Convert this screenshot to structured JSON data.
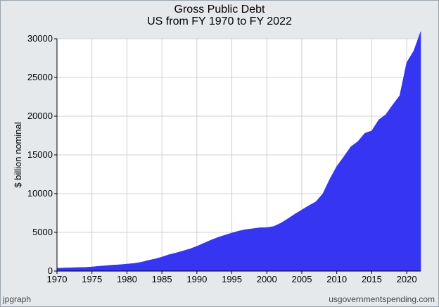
{
  "page": {
    "title_line1": "Gross Public Debt",
    "title_line2": "US from FY 1970 to FY 2022",
    "footer_left": "jpgraph",
    "footer_right": "usgovernmentspending.com"
  },
  "colors": {
    "area_fill": "#3535f2",
    "plot_bg": "#ffffff",
    "grid": "#d0d0d0",
    "page_bg": "#e6e9ec"
  },
  "chart_data": {
    "type": "area",
    "title": "Gross Public Debt",
    "subtitle": "US from FY 1970 to FY 2022",
    "xlabel": "",
    "ylabel": "$ billion nominal",
    "xlim": [
      1970,
      2022
    ],
    "ylim": [
      0,
      30000
    ],
    "x_ticks": [
      1970,
      1975,
      1980,
      1985,
      1990,
      1995,
      2000,
      2005,
      2010,
      2015,
      2020
    ],
    "x_tick_labels": [
      "1970",
      "1975",
      "1980",
      "1985",
      "1990",
      "1995",
      "2000",
      "2005",
      "2010",
      "2015",
      "2020"
    ],
    "y_ticks": [
      0,
      5000,
      10000,
      15000,
      20000,
      25000,
      30000
    ],
    "y_tick_labels": [
      "0",
      "5000",
      "10000",
      "15000",
      "20000",
      "25000",
      "30000"
    ],
    "grid": true,
    "x": [
      1970,
      1971,
      1972,
      1973,
      1974,
      1975,
      1976,
      1977,
      1978,
      1979,
      1980,
      1981,
      1982,
      1983,
      1984,
      1985,
      1986,
      1987,
      1988,
      1989,
      1990,
      1991,
      1992,
      1993,
      1994,
      1995,
      1996,
      1997,
      1998,
      1999,
      2000,
      2001,
      2002,
      2003,
      2004,
      2005,
      2006,
      2007,
      2008,
      2009,
      2010,
      2011,
      2012,
      2013,
      2014,
      2015,
      2016,
      2017,
      2018,
      2019,
      2020,
      2021,
      2022
    ],
    "values": [
      380,
      408,
      436,
      466,
      484,
      542,
      629,
      706,
      777,
      829,
      909,
      995,
      1137,
      1372,
      1565,
      1817,
      2121,
      2346,
      2601,
      2868,
      3206,
      3598,
      4002,
      4351,
      4643,
      4921,
      5181,
      5369,
      5478,
      5606,
      5629,
      5770,
      6198,
      6760,
      7355,
      7905,
      8451,
      8951,
      9986,
      11876,
      13529,
      14764,
      16051,
      16719,
      17794,
      18120,
      19539,
      20206,
      21462,
      22669,
      26945,
      28428,
      30929
    ]
  }
}
